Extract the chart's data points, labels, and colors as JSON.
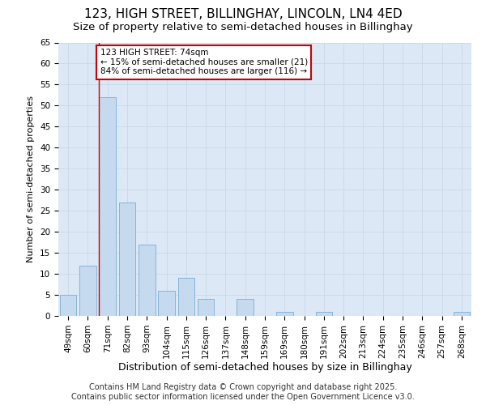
{
  "title1": "123, HIGH STREET, BILLINGHAY, LINCOLN, LN4 4ED",
  "title2": "Size of property relative to semi-detached houses in Billinghay",
  "xlabel": "Distribution of semi-detached houses by size in Billinghay",
  "ylabel": "Number of semi-detached properties",
  "categories": [
    "49sqm",
    "60sqm",
    "71sqm",
    "82sqm",
    "93sqm",
    "104sqm",
    "115sqm",
    "126sqm",
    "137sqm",
    "148sqm",
    "159sqm",
    "169sqm",
    "180sqm",
    "191sqm",
    "202sqm",
    "213sqm",
    "224sqm",
    "235sqm",
    "246sqm",
    "257sqm",
    "268sqm"
  ],
  "values": [
    5,
    12,
    52,
    27,
    17,
    6,
    9,
    4,
    0,
    4,
    0,
    1,
    0,
    1,
    0,
    0,
    0,
    0,
    0,
    0,
    1
  ],
  "bar_color": "#c5d9ef",
  "bar_edge_color": "#7aadd4",
  "vline_color": "#cc0000",
  "annotation_title": "123 HIGH STREET: 74sqm",
  "annotation_line1": "← 15% of semi-detached houses are smaller (21)",
  "annotation_line2": "84% of semi-detached houses are larger (116) →",
  "annotation_box_color": "#cc0000",
  "ylim": [
    0,
    65
  ],
  "yticks": [
    0,
    5,
    10,
    15,
    20,
    25,
    30,
    35,
    40,
    45,
    50,
    55,
    60,
    65
  ],
  "grid_color": "#c8d8ea",
  "bg_color": "#dce8f5",
  "footer": "Contains HM Land Registry data © Crown copyright and database right 2025.\nContains public sector information licensed under the Open Government Licence v3.0.",
  "title1_fontsize": 11,
  "title2_fontsize": 9.5,
  "xlabel_fontsize": 9,
  "ylabel_fontsize": 8,
  "tick_fontsize": 7.5,
  "footer_fontsize": 7
}
